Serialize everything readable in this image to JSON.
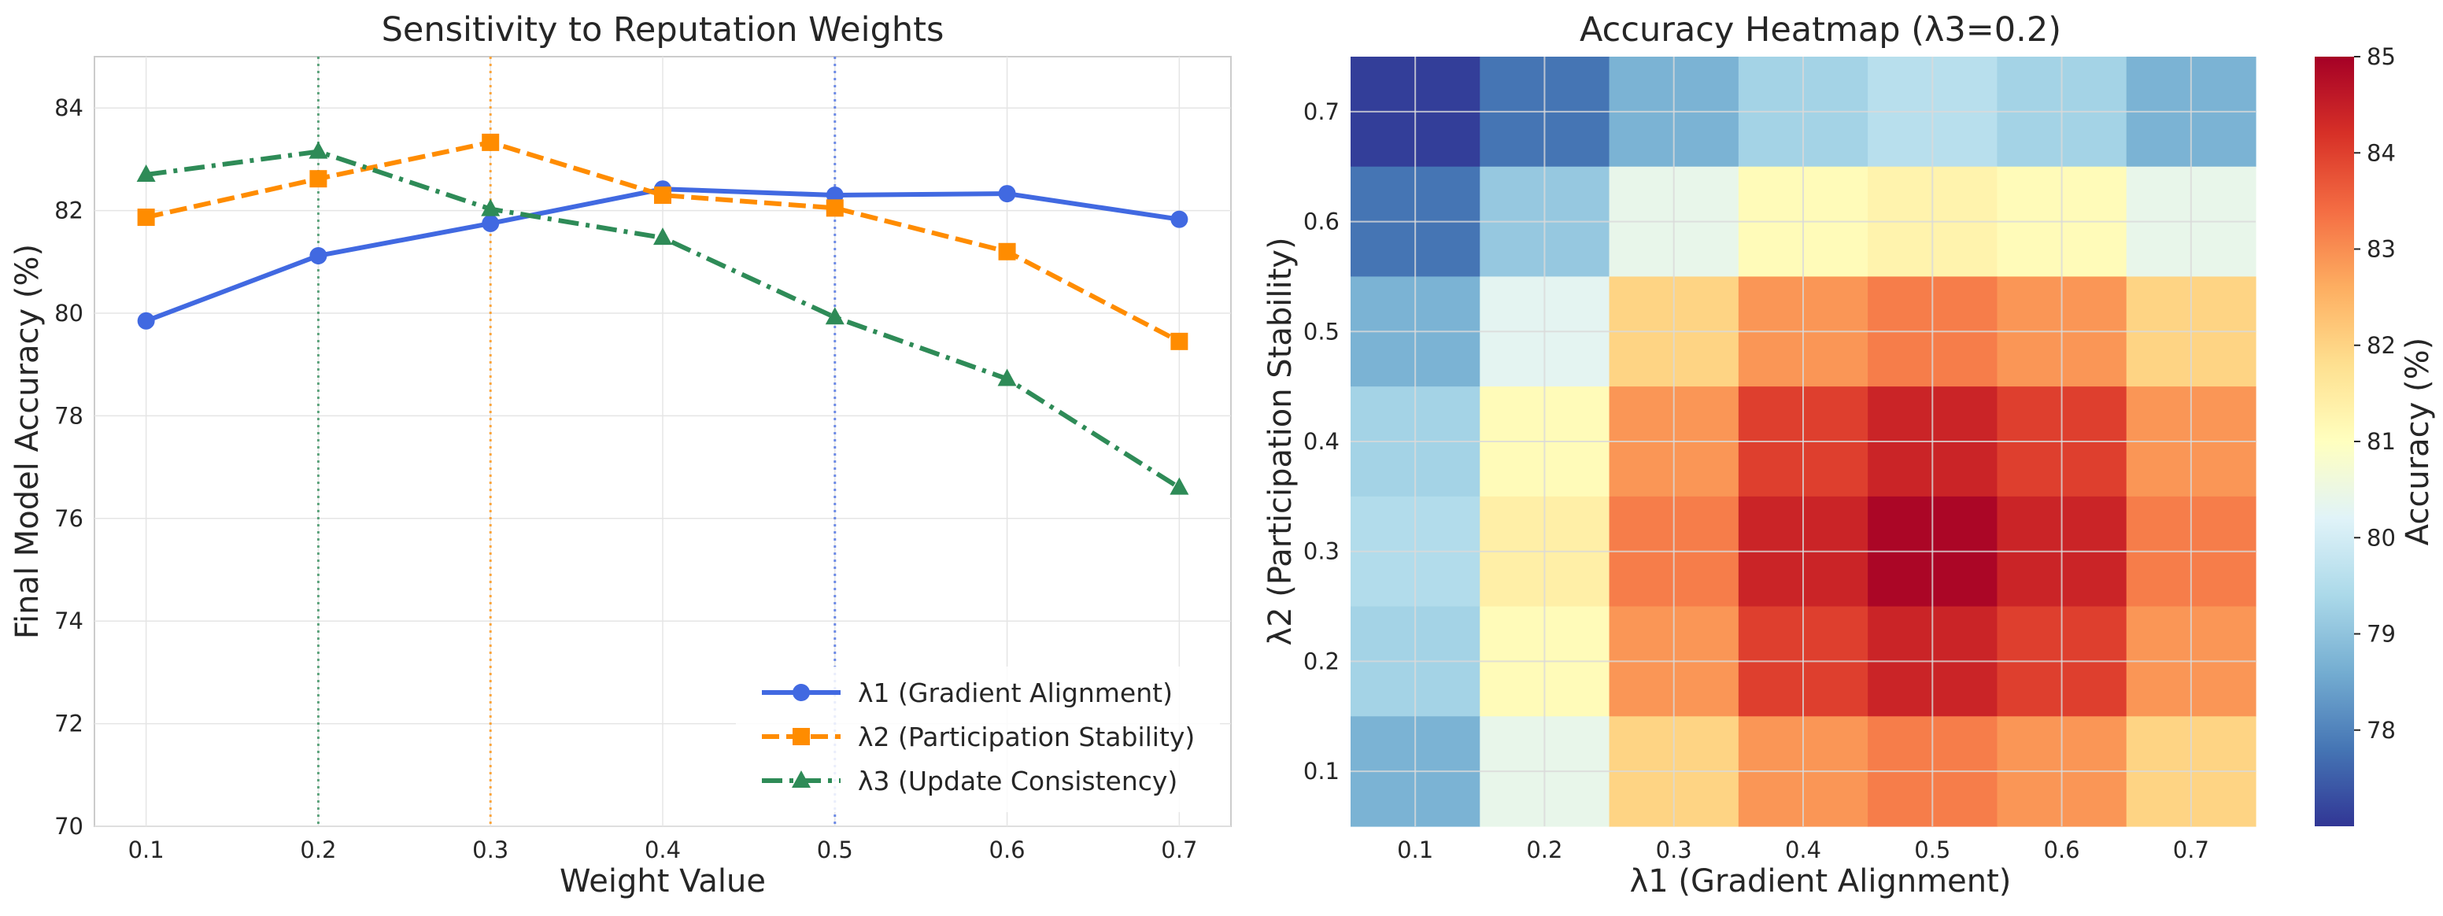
{
  "chart_data": [
    {
      "type": "line",
      "title": "Sensitivity to Reputation Weights",
      "xlabel": "Weight Value",
      "ylabel": "Final Model Accuracy (%)",
      "x": [
        0.1,
        0.2,
        0.3,
        0.4,
        0.5,
        0.6,
        0.7
      ],
      "x_tick_labels": [
        "0.1",
        "0.2",
        "0.3",
        "0.4",
        "0.5",
        "0.6",
        "0.7"
      ],
      "xlim": [
        0.07,
        0.73
      ],
      "ylim": [
        70,
        85
      ],
      "y_ticks": [
        70,
        72,
        74,
        76,
        78,
        80,
        82,
        84
      ],
      "y_tick_labels": [
        "70",
        "72",
        "74",
        "76",
        "78",
        "80",
        "82",
        "84"
      ],
      "grid": true,
      "legend_position": "lower-right",
      "series": [
        {
          "name": "λ1 (Gradient Alignment)",
          "values": [
            79.85,
            81.12,
            81.75,
            82.42,
            82.3,
            82.33,
            81.83
          ],
          "color": "#4169e1",
          "dash": "solid",
          "marker": "circle"
        },
        {
          "name": "λ2 (Participation Stability)",
          "values": [
            81.87,
            82.62,
            83.33,
            82.3,
            82.05,
            81.2,
            79.45
          ],
          "color": "#ff8c00",
          "dash": "dashed",
          "marker": "square"
        },
        {
          "name": "λ3 (Update Consistency)",
          "values": [
            82.7,
            83.15,
            82.03,
            81.47,
            79.92,
            78.72,
            76.6
          ],
          "color": "#2e8b57",
          "dash": "dashdot",
          "marker": "triangle"
        }
      ],
      "vlines": [
        {
          "x": 0.2,
          "color": "#2e8b57"
        },
        {
          "x": 0.3,
          "color": "#ff8c00"
        },
        {
          "x": 0.5,
          "color": "#4169e1"
        }
      ]
    },
    {
      "type": "heatmap",
      "title": "Accuracy Heatmap (λ3=0.2)",
      "xlabel": "λ1 (Gradient Alignment)",
      "ylabel": "λ2 (Participation Stability)",
      "x_categories": [
        "0.1",
        "0.2",
        "0.3",
        "0.4",
        "0.5",
        "0.6",
        "0.7"
      ],
      "y_categories": [
        "0.1",
        "0.2",
        "0.3",
        "0.4",
        "0.5",
        "0.6",
        "0.7"
      ],
      "values_rows_top_to_bottom": [
        [
          77.1,
          77.8,
          78.7,
          79.3,
          79.6,
          79.3,
          78.7
        ],
        [
          77.8,
          79.1,
          80.4,
          81.1,
          81.3,
          81.1,
          80.4
        ],
        [
          78.7,
          80.3,
          82.0,
          82.9,
          83.2,
          82.9,
          82.0
        ],
        [
          79.3,
          81.1,
          82.9,
          84.0,
          84.4,
          84.0,
          82.9
        ],
        [
          79.5,
          81.4,
          83.2,
          84.4,
          84.9,
          84.4,
          83.2
        ],
        [
          79.3,
          81.1,
          82.9,
          84.0,
          84.4,
          84.0,
          82.9
        ],
        [
          78.7,
          80.4,
          82.0,
          82.9,
          83.2,
          82.9,
          82.0
        ]
      ],
      "vmin": 77.0,
      "vmax": 85.0,
      "colormap": "RdYlBu_r",
      "colorbar_label": "Accuracy (%)",
      "colorbar_ticks": [
        78,
        79,
        80,
        81,
        82,
        83,
        84,
        85
      ],
      "colorbar_tick_labels": [
        "78",
        "79",
        "80",
        "81",
        "82",
        "83",
        "84",
        "85"
      ]
    }
  ]
}
